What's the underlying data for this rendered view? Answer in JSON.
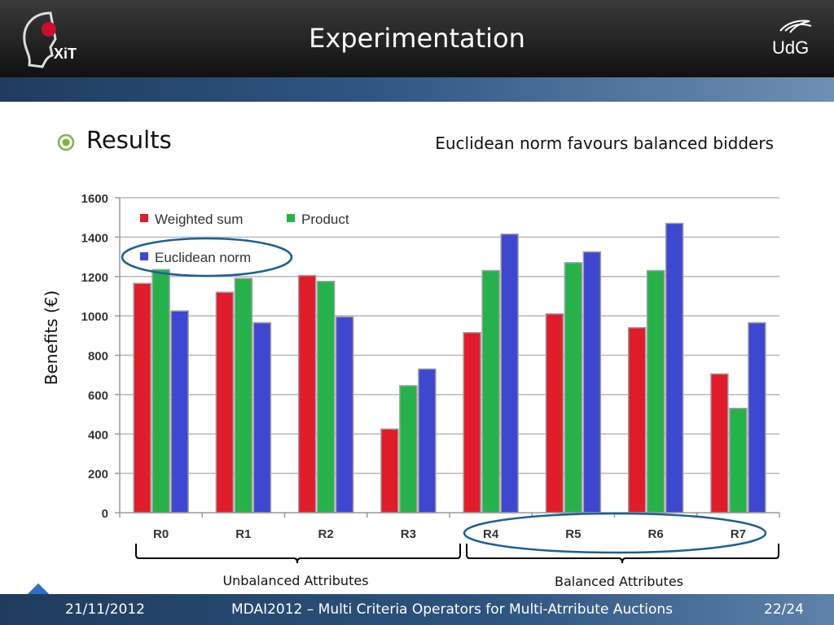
{
  "slide": {
    "title": "Experimentation",
    "bullet": "Results",
    "note": "Euclidean norm favours balanced bidders",
    "logo_left_text": "XiT",
    "logo_right_text": "UdG"
  },
  "footer": {
    "date": "21/11/2012",
    "title": "MDAI2012 – Multi Criteria Operators for Multi-Atrribute Auctions",
    "page": "22/24"
  },
  "colors": {
    "weighted_sum": "#e11c2a",
    "product": "#27b14b",
    "euclidean_norm": "#3e47cf",
    "highlight_ellipse": "#1d5f94"
  },
  "chart_data": {
    "type": "bar",
    "ylabel": "Benefits (€)",
    "xlabel": "",
    "ylim": [
      0,
      1600
    ],
    "yticks": [
      0,
      200,
      400,
      600,
      800,
      1000,
      1200,
      1400,
      1600
    ],
    "grid": true,
    "legend_position": "top-left",
    "categories": [
      "R0",
      "R1",
      "R2",
      "R3",
      "R4",
      "R5",
      "R6",
      "R7"
    ],
    "series": [
      {
        "name": "Weighted sum",
        "values": [
          1165,
          1120,
          1205,
          425,
          915,
          1010,
          940,
          705
        ]
      },
      {
        "name": "Product",
        "values": [
          1235,
          1190,
          1175,
          645,
          1230,
          1270,
          1230,
          530
        ]
      },
      {
        "name": "Euclidean norm",
        "values": [
          1025,
          965,
          995,
          730,
          1415,
          1325,
          1470,
          965
        ]
      }
    ],
    "annotations": [
      {
        "text": "Unbalanced Attributes",
        "categories": [
          "R0",
          "R1",
          "R2",
          "R3"
        ]
      },
      {
        "text": "Balanced Attributes",
        "categories": [
          "R4",
          "R5",
          "R6",
          "R7"
        ]
      }
    ]
  }
}
